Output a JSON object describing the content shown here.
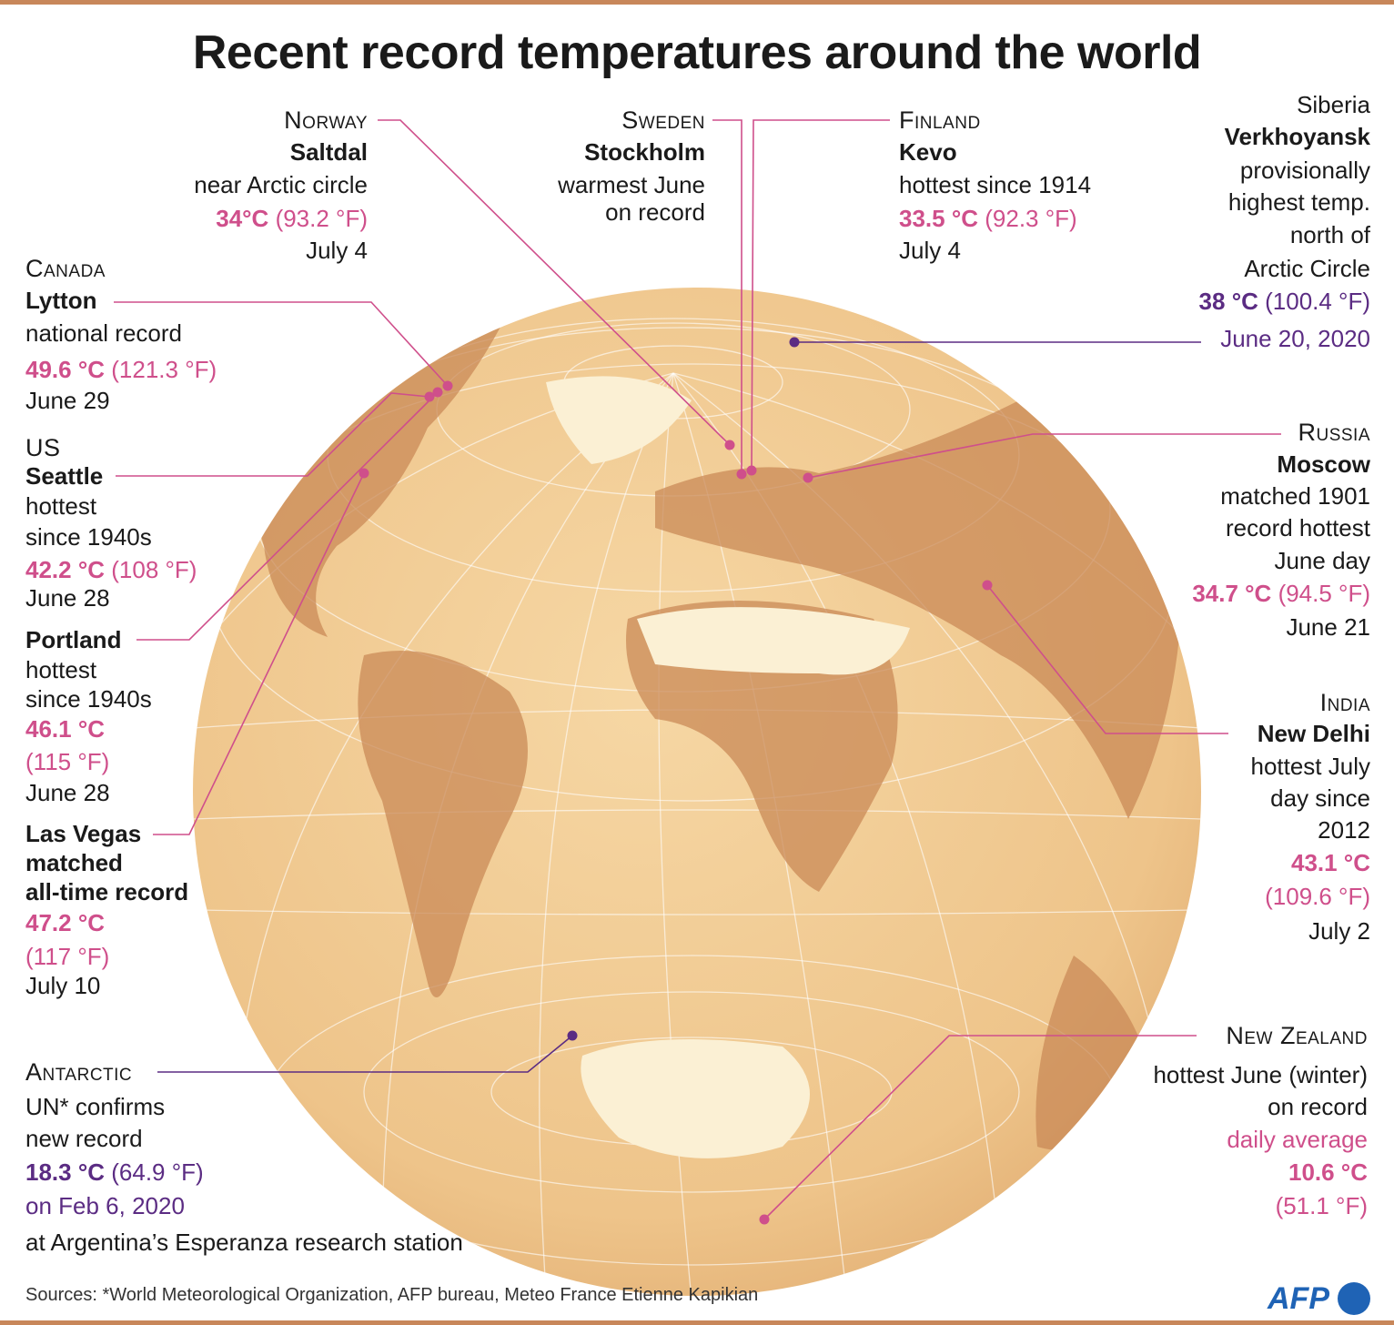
{
  "title": "Recent record temperatures around the world",
  "records": [
    {
      "country": "Norway",
      "place": "Saltdal",
      "notes": [
        "near Arctic circle"
      ],
      "celsius": "34°C",
      "fahrenheit": "(93.2 °F)",
      "date": "July 4"
    },
    {
      "country": "Sweden",
      "place": "Stockholm",
      "notes": [
        "warmest June",
        "on record"
      ]
    },
    {
      "country": "Finland",
      "place": "Kevo",
      "notes": [
        "hottest since 1914"
      ],
      "celsius": "33.5 °C",
      "fahrenheit": "(92.3 °F)",
      "date": "July 4"
    },
    {
      "region": "Siberia",
      "place": "Verkhoyansk",
      "notes": [
        "provisionally",
        "highest temp.",
        "north of",
        "Arctic Circle"
      ],
      "celsius": "38 °C",
      "fahrenheit": "(100.4 °F)",
      "date": "June 20, 2020"
    },
    {
      "country": "Canada",
      "place": "Lytton",
      "notes": [
        "national record"
      ],
      "celsius": "49.6 °C",
      "fahrenheit": "(121.3 °F)",
      "date": "June 29"
    },
    {
      "country": "US",
      "place": "Seattle",
      "notes": [
        "hottest",
        "since 1940s"
      ],
      "celsius": "42.2 °C",
      "fahrenheit": "(108 °F)",
      "date": "June 28"
    },
    {
      "place": "Portland",
      "notes": [
        "hottest",
        "since 1940s"
      ],
      "celsius": "46.1 °C",
      "fahrenheit": "(115 °F)",
      "date": "June 28"
    },
    {
      "place": "Las Vegas",
      "notes": [
        "matched",
        "all-time record"
      ],
      "celsius": "47.2 °C",
      "fahrenheit": "(117 °F)",
      "date": "July 10"
    },
    {
      "country": "Russia",
      "place": "Moscow",
      "notes": [
        "matched 1901",
        "record hottest",
        "June day"
      ],
      "celsius": "34.7 °C",
      "fahrenheit": "(94.5 °F)",
      "date": "June 21"
    },
    {
      "country": "India",
      "place": "New Delhi",
      "notes": [
        "hottest July",
        "day since",
        "2012"
      ],
      "celsius": "43.1 °C",
      "fahrenheit": "(109.6 °F)",
      "date": "July 2"
    },
    {
      "country": "Antarctic",
      "notes": [
        "UN* confirms",
        "new record"
      ],
      "celsius": "18.3 °C",
      "fahrenheit": "(64.9 °F)",
      "date": "on Feb 6, 2020",
      "station": "at Argentina’s Esperanza research station"
    },
    {
      "country": "New Zealand",
      "notes": [
        "hottest June (winter)",
        "on record"
      ],
      "measure": "daily average",
      "celsius": "10.6 °C",
      "fahrenheit": "(51.1 °F)"
    }
  ],
  "source": "Sources: *World Meteorological Organization, AFP bureau, Meteo France Etienne Kapikian",
  "logo": "AFP"
}
